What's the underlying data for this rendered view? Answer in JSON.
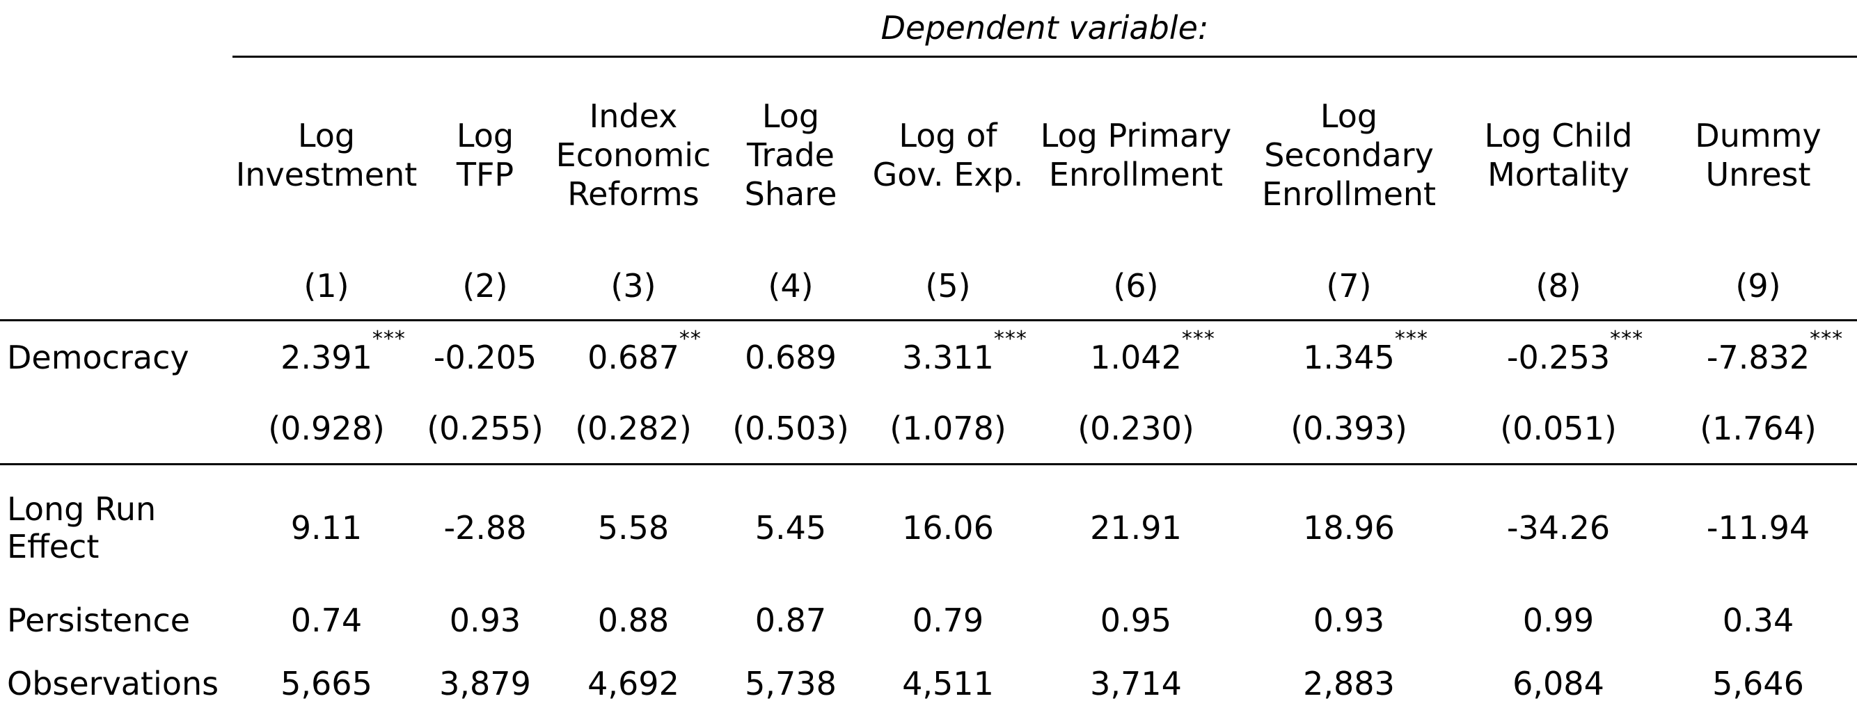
{
  "table": {
    "dependent_variable_label": "Dependent variable:",
    "columns": [
      {
        "name_lines": [
          "Log",
          "Investment"
        ],
        "number": "(1)"
      },
      {
        "name_lines": [
          "Log",
          "TFP"
        ],
        "number": "(2)"
      },
      {
        "name_lines": [
          "Index",
          "Economic",
          "Reforms"
        ],
        "number": "(3)"
      },
      {
        "name_lines": [
          "Log",
          "Trade",
          "Share"
        ],
        "number": "(4)"
      },
      {
        "name_lines": [
          "Log of",
          "Gov. Exp."
        ],
        "number": "(5)"
      },
      {
        "name_lines": [
          "Log Primary",
          "Enrollment"
        ],
        "number": "(6)"
      },
      {
        "name_lines": [
          "Log",
          "Secondary",
          "Enrollment"
        ],
        "number": "(7)"
      },
      {
        "name_lines": [
          "Log Child",
          "Mortality"
        ],
        "number": "(8)"
      },
      {
        "name_lines": [
          "Dummy",
          "Unrest"
        ],
        "number": "(9)"
      }
    ],
    "democracy": {
      "label": "Democracy",
      "coefficients": [
        {
          "value": "2.391",
          "stars": "***"
        },
        {
          "value": "-0.205",
          "stars": ""
        },
        {
          "value": "0.687",
          "stars": "**"
        },
        {
          "value": "0.689",
          "stars": ""
        },
        {
          "value": "3.311",
          "stars": "***"
        },
        {
          "value": "1.042",
          "stars": "***"
        },
        {
          "value": "1.345",
          "stars": "***"
        },
        {
          "value": "-0.253",
          "stars": "***"
        },
        {
          "value": "-7.832",
          "stars": "***"
        }
      ],
      "std_errors": [
        "(0.928)",
        "(0.255)",
        "(0.282)",
        "(0.503)",
        "(1.078)",
        "(0.230)",
        "(0.393)",
        "(0.051)",
        "(1.764)"
      ]
    },
    "long_run_effect": {
      "label": "Long Run Effect",
      "values": [
        "9.11",
        "-2.88",
        "5.58",
        "5.45",
        "16.06",
        "21.91",
        "18.96",
        "-34.26",
        "-11.94"
      ]
    },
    "persistence": {
      "label": "Persistence",
      "values": [
        "0.74",
        "0.93",
        "0.88",
        "0.87",
        "0.79",
        "0.95",
        "0.93",
        "0.99",
        "0.34"
      ]
    },
    "observations": {
      "label": "Observations",
      "values": [
        "5,665",
        "3,879",
        "4,692",
        "5,738",
        "4,511",
        "3,714",
        "2,883",
        "6,084",
        "5,646"
      ]
    }
  }
}
